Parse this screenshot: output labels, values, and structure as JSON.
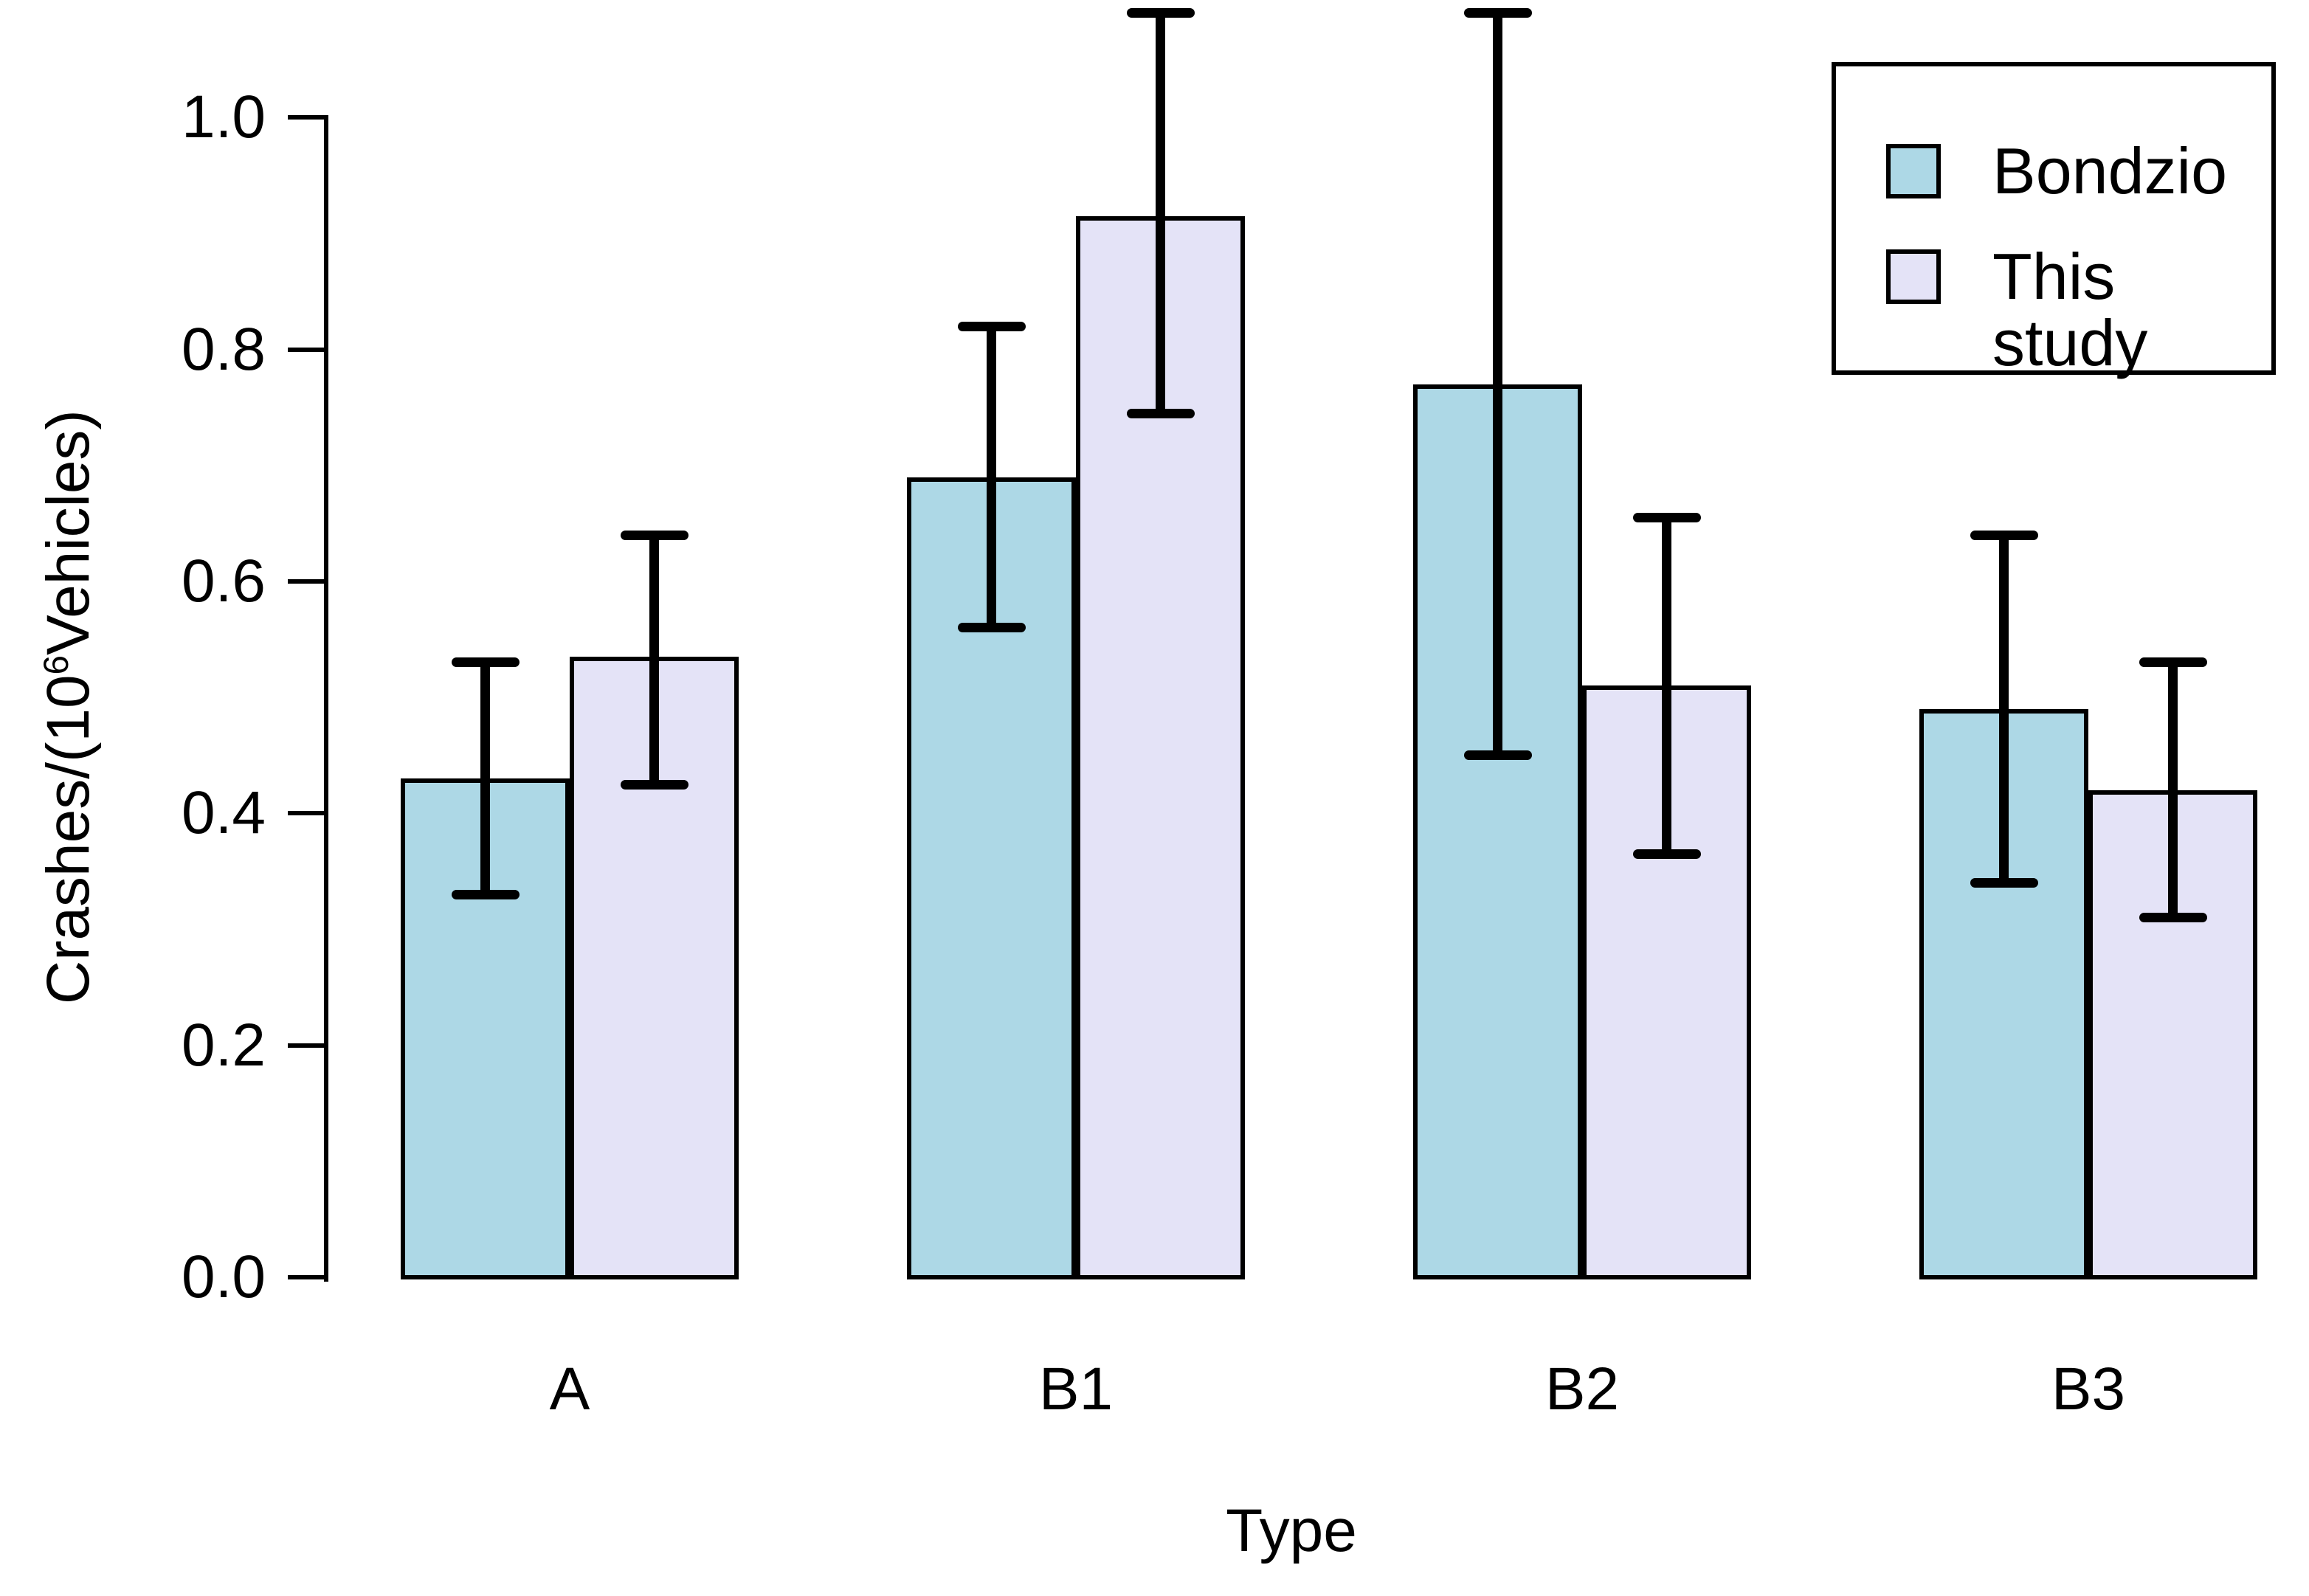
{
  "chart_data": {
    "type": "bar",
    "title": "",
    "categories": [
      "A",
      "B1",
      "B2",
      "B3"
    ],
    "series": [
      {
        "name": "Bondzio",
        "color": "#ADD8E6",
        "values": [
          0.43,
          0.69,
          0.77,
          0.49
        ],
        "error_low": [
          0.33,
          0.56,
          0.45,
          0.34
        ],
        "error_high": [
          0.53,
          0.82,
          1.09,
          0.64
        ]
      },
      {
        "name": "This study",
        "color": "#E4E3F7",
        "values": [
          0.535,
          0.915,
          0.51,
          0.42
        ],
        "error_low": [
          0.425,
          0.745,
          0.365,
          0.31
        ],
        "error_high": [
          0.64,
          1.09,
          0.655,
          0.53
        ]
      }
    ],
    "xlabel": "Type",
    "ylabel": "Crashes/(10⁶Vehicles)",
    "ylabel_parts": {
      "prefix": "Crashes/(10",
      "superscript": "6",
      "suffix": "Vehicles)"
    },
    "yticks": [
      "0.0",
      "0.2",
      "0.4",
      "0.6",
      "0.8",
      "1.0"
    ],
    "ylim": [
      0,
      1.1
    ],
    "grid": false,
    "legend_position": "top-right",
    "legend": {
      "items": [
        {
          "label": "Bondzio"
        },
        {
          "label": "This study"
        }
      ]
    }
  },
  "colors": {
    "background": "#FFFFFF",
    "axis": "#000000",
    "bar_outline": "#000000",
    "error_bar": "#000000",
    "series_bondzio": "#ADD8E6",
    "series_this_study": "#E4E3F7"
  }
}
